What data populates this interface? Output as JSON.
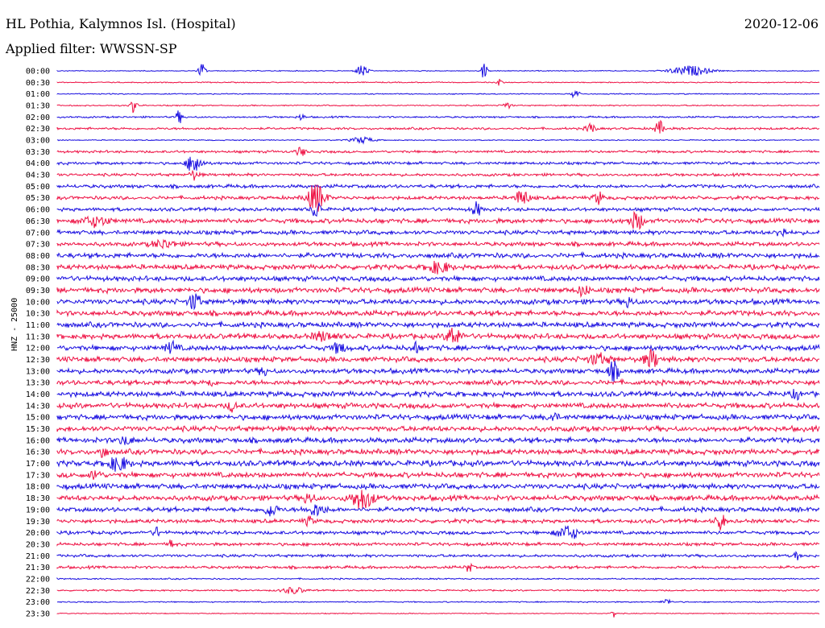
{
  "header": {
    "station": "HL Pothia, Kalymnos Isl. (Hospital)",
    "date": "2020-12-06",
    "filter": "Applied filter: WWSSN-SP"
  },
  "channel_label": "HNZ - 25000",
  "colors": {
    "blue": "#1a0fe0",
    "red": "#ee1144",
    "text": "#000000",
    "background": "#ffffff"
  },
  "chart_data": {
    "type": "line",
    "subtype": "helicorder",
    "row_interval_minutes": 30,
    "rows": [
      {
        "label": "00:00",
        "color": "#1a0fe0",
        "events": [
          [
            0.19,
            10,
            0.003
          ],
          [
            0.4,
            8,
            0.005
          ],
          [
            0.56,
            10,
            0.003
          ],
          [
            0.83,
            6,
            0.018
          ]
        ],
        "noise": 0.5
      },
      {
        "label": "00:30",
        "color": "#ee1144",
        "events": [
          [
            0.58,
            4,
            0.003
          ]
        ],
        "noise": 0.6
      },
      {
        "label": "01:00",
        "color": "#1a0fe0",
        "events": [
          [
            0.68,
            8,
            0.003
          ]
        ],
        "noise": 0.6
      },
      {
        "label": "01:30",
        "color": "#ee1144",
        "events": [
          [
            0.1,
            9,
            0.003
          ],
          [
            0.59,
            4,
            0.004
          ]
        ],
        "noise": 0.7
      },
      {
        "label": "02:00",
        "color": "#1a0fe0",
        "events": [
          [
            0.16,
            8,
            0.003
          ],
          [
            0.32,
            4,
            0.003
          ]
        ],
        "noise": 1.0
      },
      {
        "label": "02:30",
        "color": "#ee1144",
        "events": [
          [
            0.7,
            7,
            0.004
          ],
          [
            0.79,
            9,
            0.004
          ]
        ],
        "noise": 1.3
      },
      {
        "label": "03:00",
        "color": "#1a0fe0",
        "events": [
          [
            0.4,
            4,
            0.01
          ]
        ],
        "noise": 0.6
      },
      {
        "label": "03:30",
        "color": "#ee1144",
        "events": [
          [
            0.32,
            6,
            0.004
          ]
        ],
        "noise": 1.4
      },
      {
        "label": "04:00",
        "color": "#1a0fe0",
        "events": [
          [
            0.18,
            15,
            0.006
          ]
        ],
        "noise": 1.6
      },
      {
        "label": "04:30",
        "color": "#ee1144",
        "events": [
          [
            0.18,
            6,
            0.004
          ]
        ],
        "noise": 1.6
      },
      {
        "label": "05:00",
        "color": "#1a0fe0",
        "events": [],
        "noise": 2.0
      },
      {
        "label": "05:30",
        "color": "#ee1144",
        "events": [
          [
            0.34,
            18,
            0.008
          ],
          [
            0.61,
            10,
            0.006
          ],
          [
            0.71,
            8,
            0.004
          ]
        ],
        "noise": 2.0
      },
      {
        "label": "06:00",
        "color": "#1a0fe0",
        "events": [
          [
            0.34,
            12,
            0.004
          ],
          [
            0.55,
            9,
            0.004
          ]
        ],
        "noise": 2.0
      },
      {
        "label": "06:30",
        "color": "#ee1144",
        "events": [
          [
            0.05,
            6,
            0.012
          ],
          [
            0.76,
            11,
            0.006
          ]
        ],
        "noise": 2.6
      },
      {
        "label": "07:00",
        "color": "#1a0fe0",
        "events": [
          [
            0.95,
            7,
            0.004
          ]
        ],
        "noise": 2.4
      },
      {
        "label": "07:30",
        "color": "#ee1144",
        "events": [
          [
            0.14,
            5,
            0.01
          ]
        ],
        "noise": 2.4
      },
      {
        "label": "08:00",
        "color": "#1a0fe0",
        "events": [],
        "noise": 2.8
      },
      {
        "label": "08:30",
        "color": "#ee1144",
        "events": [
          [
            0.5,
            7,
            0.01
          ]
        ],
        "noise": 2.8
      },
      {
        "label": "09:00",
        "color": "#1a0fe0",
        "events": [],
        "noise": 2.8
      },
      {
        "label": "09:30",
        "color": "#ee1144",
        "events": [
          [
            0.69,
            6,
            0.005
          ]
        ],
        "noise": 3.0
      },
      {
        "label": "10:00",
        "color": "#1a0fe0",
        "events": [
          [
            0.18,
            11,
            0.005
          ],
          [
            0.75,
            6,
            0.004
          ]
        ],
        "noise": 3.0
      },
      {
        "label": "10:30",
        "color": "#ee1144",
        "events": [],
        "noise": 3.0
      },
      {
        "label": "11:00",
        "color": "#1a0fe0",
        "events": [],
        "noise": 3.0
      },
      {
        "label": "11:30",
        "color": "#ee1144",
        "events": [
          [
            0.52,
            12,
            0.006
          ],
          [
            0.35,
            5,
            0.01
          ]
        ],
        "noise": 3.0
      },
      {
        "label": "12:00",
        "color": "#1a0fe0",
        "events": [
          [
            0.15,
            7,
            0.005
          ],
          [
            0.37,
            7,
            0.005
          ],
          [
            0.47,
            7,
            0.003
          ]
        ],
        "noise": 3.0
      },
      {
        "label": "12:30",
        "color": "#ee1144",
        "events": [
          [
            0.71,
            6,
            0.01
          ],
          [
            0.78,
            11,
            0.006
          ]
        ],
        "noise": 3.0
      },
      {
        "label": "13:00",
        "color": "#1a0fe0",
        "events": [
          [
            0.27,
            7,
            0.003
          ],
          [
            0.73,
            11,
            0.005
          ]
        ],
        "noise": 2.8
      },
      {
        "label": "13:30",
        "color": "#ee1144",
        "events": [
          [
            0.2,
            5,
            0.003
          ]
        ],
        "noise": 2.8
      },
      {
        "label": "14:00",
        "color": "#1a0fe0",
        "events": [
          [
            0.97,
            7,
            0.003
          ]
        ],
        "noise": 3.0
      },
      {
        "label": "14:30",
        "color": "#ee1144",
        "events": [
          [
            0.23,
            6,
            0.004
          ]
        ],
        "noise": 3.0
      },
      {
        "label": "15:00",
        "color": "#1a0fe0",
        "events": [
          [
            0.65,
            6,
            0.004
          ]
        ],
        "noise": 3.0
      },
      {
        "label": "15:30",
        "color": "#ee1144",
        "events": [],
        "noise": 3.0
      },
      {
        "label": "16:00",
        "color": "#1a0fe0",
        "events": [
          [
            0.09,
            5,
            0.006
          ]
        ],
        "noise": 3.0
      },
      {
        "label": "16:30",
        "color": "#ee1144",
        "events": [
          [
            0.06,
            9,
            0.003
          ]
        ],
        "noise": 3.0
      },
      {
        "label": "17:00",
        "color": "#1a0fe0",
        "events": [
          [
            0.08,
            9,
            0.008
          ]
        ],
        "noise": 3.2
      },
      {
        "label": "17:30",
        "color": "#ee1144",
        "events": [
          [
            0.05,
            7,
            0.004
          ]
        ],
        "noise": 3.0
      },
      {
        "label": "18:00",
        "color": "#1a0fe0",
        "events": [],
        "noise": 3.0
      },
      {
        "label": "18:30",
        "color": "#ee1144",
        "events": [
          [
            0.4,
            13,
            0.01
          ],
          [
            0.33,
            6,
            0.005
          ]
        ],
        "noise": 3.0
      },
      {
        "label": "19:00",
        "color": "#1a0fe0",
        "events": [
          [
            0.28,
            8,
            0.006
          ],
          [
            0.34,
            7,
            0.008
          ]
        ],
        "noise": 2.6
      },
      {
        "label": "19:30",
        "color": "#ee1144",
        "events": [
          [
            0.87,
            11,
            0.004
          ],
          [
            0.33,
            5,
            0.004
          ]
        ],
        "noise": 2.2
      },
      {
        "label": "20:00",
        "color": "#1a0fe0",
        "events": [
          [
            0.67,
            8,
            0.01
          ],
          [
            0.13,
            6,
            0.003
          ]
        ],
        "noise": 2.0
      },
      {
        "label": "20:30",
        "color": "#ee1144",
        "events": [
          [
            0.15,
            7,
            0.002
          ]
        ],
        "noise": 1.8
      },
      {
        "label": "21:00",
        "color": "#1a0fe0",
        "events": [
          [
            0.97,
            6,
            0.002
          ]
        ],
        "noise": 1.6
      },
      {
        "label": "21:30",
        "color": "#ee1144",
        "events": [
          [
            0.54,
            6,
            0.003
          ]
        ],
        "noise": 1.6
      },
      {
        "label": "22:00",
        "color": "#1a0fe0",
        "events": [],
        "noise": 0.8
      },
      {
        "label": "22:30",
        "color": "#ee1144",
        "events": [
          [
            0.31,
            4,
            0.01
          ]
        ],
        "noise": 0.9
      },
      {
        "label": "23:00",
        "color": "#1a0fe0",
        "events": [
          [
            0.8,
            4,
            0.004
          ]
        ],
        "noise": 0.7
      },
      {
        "label": "23:30",
        "color": "#ee1144",
        "events": [
          [
            0.73,
            6,
            0.002
          ]
        ],
        "noise": 0.5
      }
    ]
  }
}
